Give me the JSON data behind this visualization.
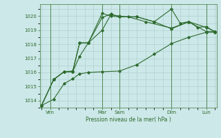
{
  "title": "",
  "xlabel": "Pression niveau de la mer( hPa )",
  "background_color": "#cce8e8",
  "grid_color": "#aacccc",
  "line_color": "#2d6a2d",
  "ylim": [
    1013.5,
    1020.85
  ],
  "xlim": [
    -0.1,
    10.1
  ],
  "yticks": [
    1014,
    1015,
    1016,
    1017,
    1018,
    1019,
    1020
  ],
  "xtick_positions": [
    0.5,
    3.5,
    4.5,
    7.5,
    9.5
  ],
  "xtick_labels": [
    "Ven",
    "Mar",
    "Sam",
    "Dim",
    "Lun"
  ],
  "vlines": [
    0.5,
    3.5,
    4.5,
    7.5,
    9.5
  ],
  "figsize": [
    3.2,
    2.0
  ],
  "dpi": 100,
  "series": [
    {
      "x": [
        0.0,
        0.7,
        1.3,
        1.8,
        2.2,
        2.7,
        3.5,
        4.5,
        5.5,
        6.5,
        7.5,
        8.5,
        9.5,
        10.0
      ],
      "y": [
        1013.65,
        1014.1,
        1015.2,
        1015.55,
        1015.9,
        1016.0,
        1016.05,
        1016.1,
        1016.55,
        1017.3,
        1018.05,
        1018.5,
        1018.85,
        1018.85
      ]
    },
    {
      "x": [
        0.0,
        0.7,
        1.3,
        1.8,
        2.2,
        2.7,
        3.5,
        4.0,
        4.5,
        5.5,
        6.5,
        7.5,
        8.0,
        8.5,
        9.0,
        9.5,
        10.0
      ],
      "y": [
        1013.65,
        1015.5,
        1016.05,
        1016.1,
        1018.1,
        1018.1,
        1019.9,
        1020.15,
        1019.95,
        1019.95,
        1019.6,
        1020.5,
        1019.5,
        1019.6,
        1019.2,
        1019.25,
        1018.9
      ]
    },
    {
      "x": [
        0.0,
        0.7,
        1.3,
        1.8,
        2.2,
        2.7,
        3.5,
        4.0,
        4.5,
        5.5,
        6.5,
        7.5,
        8.5,
        9.5,
        10.0
      ],
      "y": [
        1013.65,
        1015.5,
        1016.05,
        1016.05,
        1017.15,
        1018.1,
        1020.2,
        1020.0,
        1019.95,
        1019.95,
        1019.6,
        1019.1,
        1019.6,
        1019.2,
        1018.9
      ]
    },
    {
      "x": [
        0.0,
        0.7,
        1.3,
        1.8,
        2.2,
        2.7,
        3.5,
        4.0,
        4.5,
        5.0,
        6.0,
        7.5,
        8.5,
        9.5,
        10.0
      ],
      "y": [
        1013.65,
        1015.5,
        1016.05,
        1016.05,
        1018.1,
        1018.1,
        1019.0,
        1020.1,
        1020.0,
        1019.95,
        1019.6,
        1019.15,
        1019.6,
        1018.9,
        1018.9
      ]
    }
  ]
}
